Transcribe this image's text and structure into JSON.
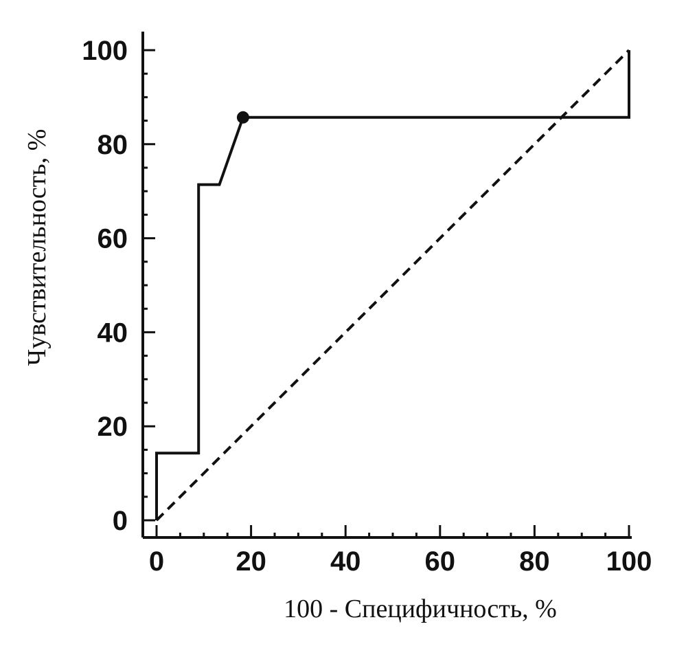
{
  "chart_data": {
    "type": "line",
    "title": "",
    "xlabel": "100 - Специфичность, %",
    "ylabel": "Чувствительность, %",
    "xlim": [
      0,
      100
    ],
    "ylim": [
      0,
      100
    ],
    "x_ticks": [
      "0",
      "20",
      "40",
      "60",
      "80",
      "100"
    ],
    "y_ticks": [
      "0",
      "20",
      "40",
      "60",
      "80",
      "100"
    ],
    "grid": false,
    "series": [
      {
        "style": "solid",
        "color": "#111111",
        "points": [
          [
            0,
            0
          ],
          [
            0,
            14.3
          ],
          [
            8.9,
            14.3
          ],
          [
            8.9,
            71.4
          ],
          [
            13.3,
            71.4
          ],
          [
            18.3,
            85.7
          ],
          [
            100,
            85.7
          ],
          [
            100,
            100
          ]
        ]
      },
      {
        "style": "dashed",
        "color": "#111111",
        "points": [
          [
            0,
            0
          ],
          [
            100,
            100
          ]
        ]
      }
    ],
    "markers": [
      {
        "x": 18.3,
        "y": 85.7
      }
    ]
  }
}
